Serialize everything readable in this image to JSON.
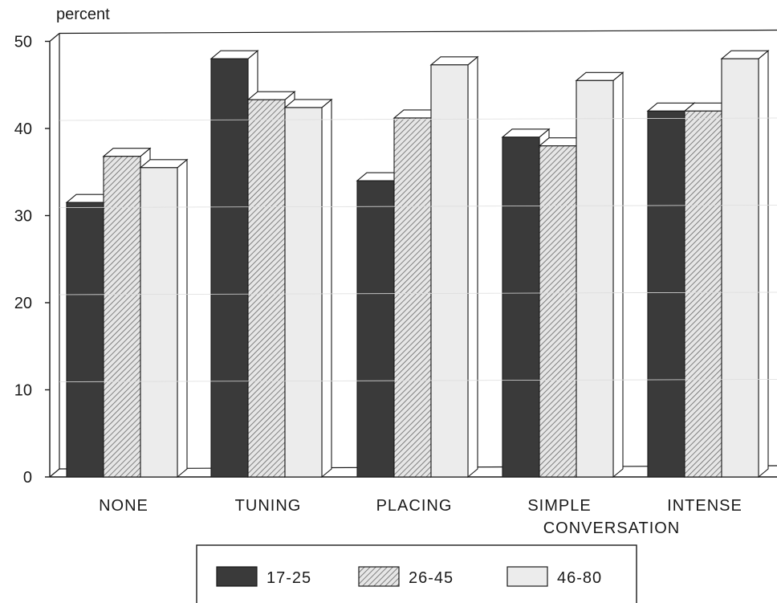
{
  "chart_data": {
    "type": "bar",
    "ylabel": "percent",
    "ylim": [
      0,
      50
    ],
    "yticks": [
      0,
      10,
      20,
      30,
      40,
      50
    ],
    "categories": [
      "NONE",
      "TUNING",
      "PLACING",
      "SIMPLE",
      "INTENSE"
    ],
    "category_group_label": "CONVERSATION",
    "series": [
      {
        "name": "17-25",
        "values": [
          31.5,
          48,
          34,
          39,
          42
        ],
        "fill": "dark"
      },
      {
        "name": "26-45",
        "values": [
          36.8,
          43.3,
          41.2,
          38,
          42
        ],
        "fill": "hatched"
      },
      {
        "name": "46-80",
        "values": [
          35.5,
          42.4,
          47.3,
          45.5,
          48
        ],
        "fill": "light"
      }
    ],
    "legend_position": "bottom-center",
    "colors": {
      "dark": "#3a3a3a",
      "hatched_bg": "#e6e6e6",
      "hatch_line": "#666666",
      "light": "#ececec",
      "outline": "#1a1a1a"
    }
  }
}
